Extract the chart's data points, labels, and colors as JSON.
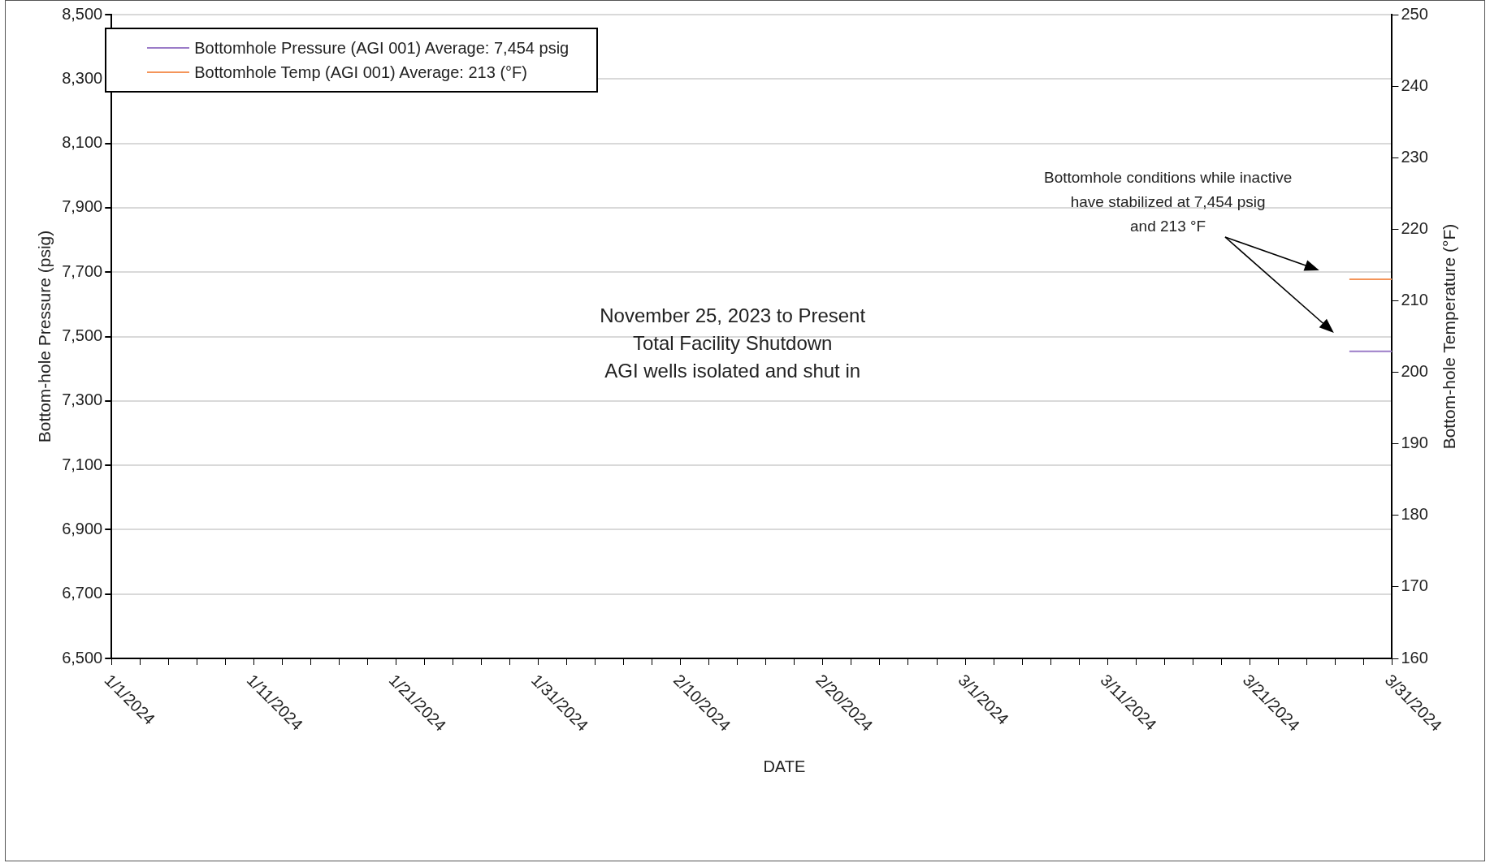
{
  "chart_data": {
    "type": "line",
    "xlabel": "DATE",
    "ylabel": "Bottom-hole Pressure (psig)",
    "y2label": "Bottom-hole Temperature (°F)",
    "series": [
      {
        "name": "Bottomhole Pressure (AGI 001) Average: 7,454 psig",
        "color": "#9b7cc8",
        "x": [
          "2024-03-28",
          "2024-03-31"
        ],
        "values": [
          7454,
          7454
        ]
      },
      {
        "name": "Bottomhole Temp (AGI 001) Average: 213 (°F)",
        "color": "#f4955a",
        "axis": "y2",
        "x": [
          "2024-03-28",
          "2024-03-31"
        ],
        "values": [
          213,
          213
        ]
      }
    ],
    "xlim": [
      "2024-01-01",
      "2024-03-31"
    ],
    "xticks": [
      {
        "value": "2024-01-01",
        "label": "1/1/2024"
      },
      {
        "value": "2024-01-03",
        "label": null
      },
      {
        "value": "2024-01-05",
        "label": null
      },
      {
        "value": "2024-01-07",
        "label": null
      },
      {
        "value": "2024-01-09",
        "label": null
      },
      {
        "value": "2024-01-11",
        "label": "1/11/2024"
      },
      {
        "value": "2024-01-13",
        "label": null
      },
      {
        "value": "2024-01-15",
        "label": null
      },
      {
        "value": "2024-01-17",
        "label": null
      },
      {
        "value": "2024-01-19",
        "label": null
      },
      {
        "value": "2024-01-21",
        "label": "1/21/2024"
      },
      {
        "value": "2024-01-23",
        "label": null
      },
      {
        "value": "2024-01-25",
        "label": null
      },
      {
        "value": "2024-01-27",
        "label": null
      },
      {
        "value": "2024-01-29",
        "label": null
      },
      {
        "value": "2024-01-31",
        "label": "1/31/2024"
      },
      {
        "value": "2024-02-02",
        "label": null
      },
      {
        "value": "2024-02-04",
        "label": null
      },
      {
        "value": "2024-02-06",
        "label": null
      },
      {
        "value": "2024-02-08",
        "label": null
      },
      {
        "value": "2024-02-10",
        "label": "2/10/2024"
      },
      {
        "value": "2024-02-12",
        "label": null
      },
      {
        "value": "2024-02-14",
        "label": null
      },
      {
        "value": "2024-02-16",
        "label": null
      },
      {
        "value": "2024-02-18",
        "label": null
      },
      {
        "value": "2024-02-20",
        "label": "2/20/2024"
      },
      {
        "value": "2024-02-22",
        "label": null
      },
      {
        "value": "2024-02-24",
        "label": null
      },
      {
        "value": "2024-02-26",
        "label": null
      },
      {
        "value": "2024-02-28",
        "label": null
      },
      {
        "value": "2024-03-01",
        "label": "3/1/2024"
      },
      {
        "value": "2024-03-03",
        "label": null
      },
      {
        "value": "2024-03-05",
        "label": null
      },
      {
        "value": "2024-03-07",
        "label": null
      },
      {
        "value": "2024-03-09",
        "label": null
      },
      {
        "value": "2024-03-11",
        "label": "3/11/2024"
      },
      {
        "value": "2024-03-13",
        "label": null
      },
      {
        "value": "2024-03-15",
        "label": null
      },
      {
        "value": "2024-03-17",
        "label": null
      },
      {
        "value": "2024-03-19",
        "label": null
      },
      {
        "value": "2024-03-21",
        "label": "3/21/2024"
      },
      {
        "value": "2024-03-23",
        "label": null
      },
      {
        "value": "2024-03-25",
        "label": null
      },
      {
        "value": "2024-03-27",
        "label": null
      },
      {
        "value": "2024-03-29",
        "label": null
      },
      {
        "value": "2024-03-31",
        "label": "3/31/2024"
      }
    ],
    "ylim": [
      6500,
      8500
    ],
    "yticks": [
      {
        "value": 6500,
        "label": "6,500"
      },
      {
        "value": 6700,
        "label": "6,700"
      },
      {
        "value": 6900,
        "label": "6,900"
      },
      {
        "value": 7100,
        "label": "7,100"
      },
      {
        "value": 7300,
        "label": "7,300"
      },
      {
        "value": 7500,
        "label": "7,500"
      },
      {
        "value": 7700,
        "label": "7,700"
      },
      {
        "value": 7900,
        "label": "7,900"
      },
      {
        "value": 8100,
        "label": "8,100"
      },
      {
        "value": 8300,
        "label": "8,300"
      },
      {
        "value": 8500,
        "label": "8,500"
      }
    ],
    "y2lim": [
      160,
      250
    ],
    "y2ticks": [
      160,
      170,
      180,
      190,
      200,
      210,
      220,
      230,
      240,
      250
    ],
    "grid": "y",
    "legend": "top left",
    "marker": "none",
    "line_style": "solid",
    "annotations": [
      "November 25, 2023 to Present\nTotal Facility Shutdown\nAGI wells isolated and shut in",
      "Bottomhole conditions while inactive\nhave stabilized at 7,454 psig\nand 213 °F"
    ]
  }
}
